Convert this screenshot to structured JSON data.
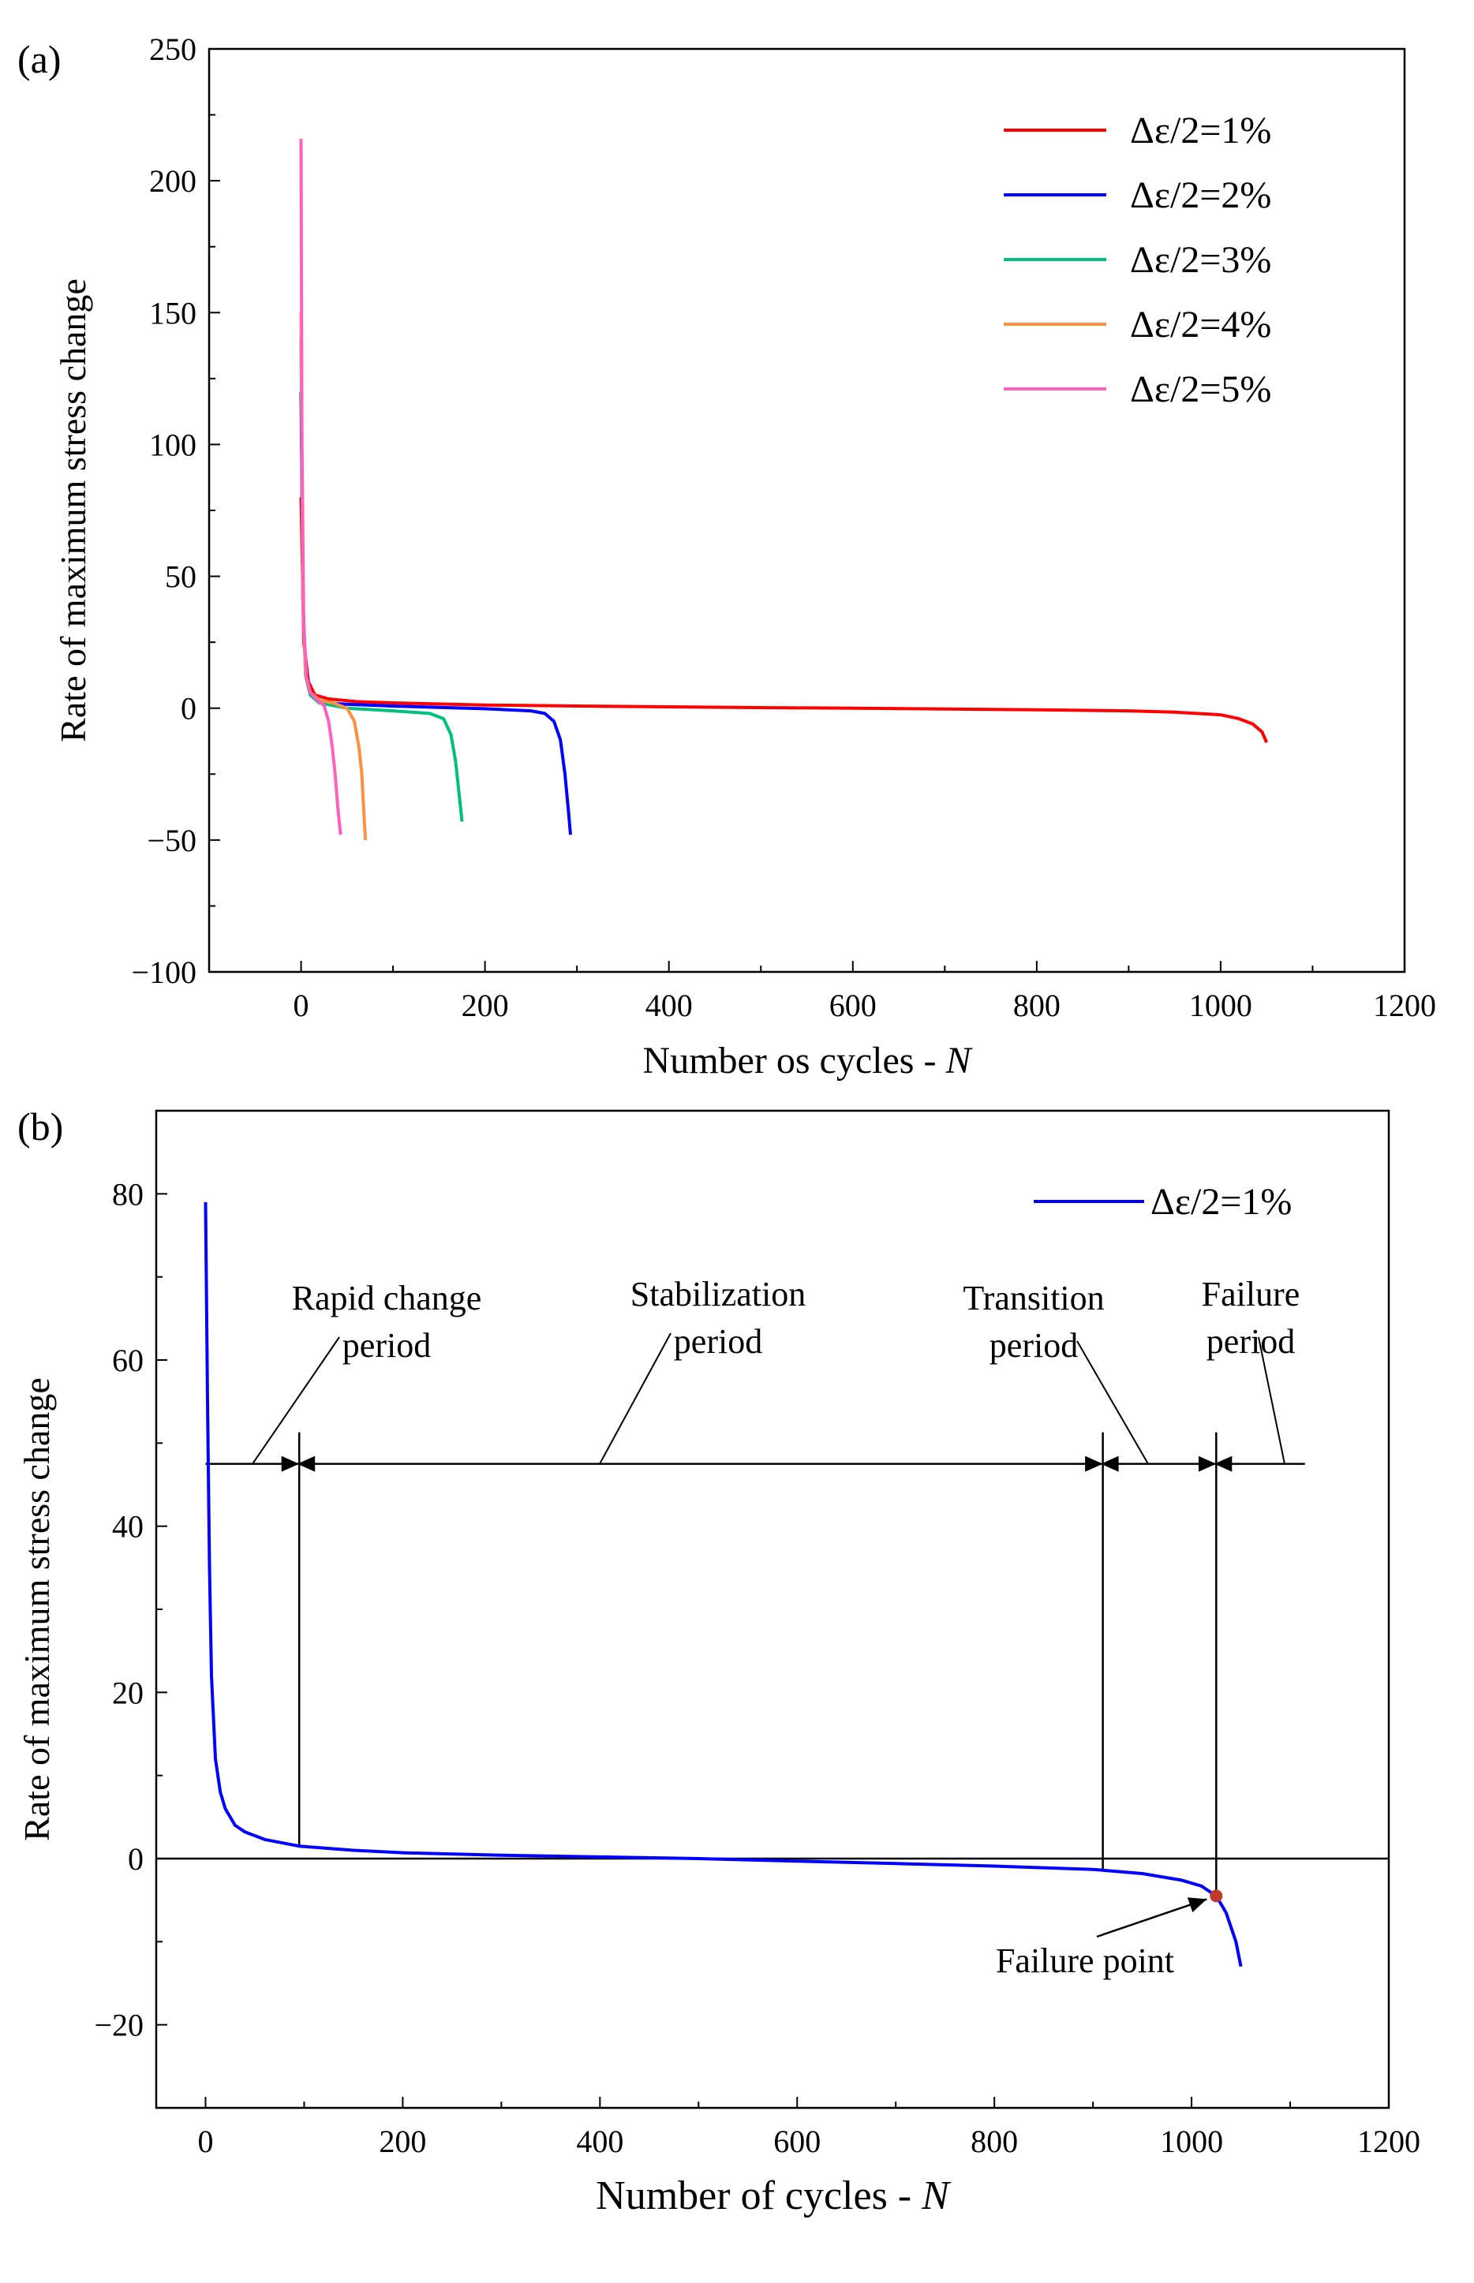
{
  "chart_data": [
    {
      "panel_label": "(a)",
      "type": "line",
      "title": "",
      "xlabel": "Number os cycles - ",
      "xlabel_italic": "N",
      "ylabel": "Rate of maximum stress change",
      "xlim": [
        -100,
        1200
      ],
      "ylim": [
        -100,
        250
      ],
      "xticks": [
        0,
        200,
        400,
        600,
        800,
        1000,
        1200
      ],
      "yticks": [
        -100,
        -50,
        0,
        50,
        100,
        150,
        200,
        250
      ],
      "grid": false,
      "legend_position": "top-right",
      "series": [
        {
          "name": "Δε/2=1%",
          "color": "#ff0000",
          "x": [
            0,
            3,
            8,
            15,
            30,
            60,
            100,
            200,
            300,
            400,
            500,
            600,
            700,
            800,
            900,
            950,
            1000,
            1020,
            1035,
            1045,
            1050
          ],
          "y": [
            80,
            25,
            10,
            5,
            3.5,
            2.5,
            2,
            1.2,
            0.8,
            0.5,
            0.2,
            0,
            -0.3,
            -0.6,
            -1,
            -1.5,
            -2.5,
            -4,
            -6,
            -9,
            -13
          ]
        },
        {
          "name": "Δε/2=2%",
          "color": "#0000ff",
          "x": [
            0,
            2,
            5,
            10,
            20,
            50,
            100,
            150,
            200,
            250,
            265,
            275,
            282,
            287,
            291,
            293
          ],
          "y": [
            120,
            40,
            15,
            5,
            2,
            1.5,
            0.8,
            0.3,
            -0.2,
            -1,
            -2,
            -5,
            -12,
            -25,
            -40,
            -48
          ]
        },
        {
          "name": "Δε/2=3%",
          "color": "#00c080",
          "x": [
            0,
            2,
            5,
            10,
            20,
            50,
            100,
            140,
            155,
            163,
            168,
            172,
            175
          ],
          "y": [
            140,
            40,
            12,
            5,
            2,
            0,
            -1,
            -2,
            -4,
            -10,
            -20,
            -33,
            -43
          ]
        },
        {
          "name": "Δε/2=4%",
          "color": "#ff9040",
          "x": [
            0,
            2,
            5,
            10,
            20,
            35,
            50,
            58,
            63,
            66,
            68,
            70
          ],
          "y": [
            150,
            40,
            12,
            6,
            3,
            2,
            0,
            -5,
            -15,
            -25,
            -38,
            -50
          ]
        },
        {
          "name": "Δε/2=5%",
          "color": "#ff60c0",
          "x": [
            0,
            1,
            3,
            6,
            10,
            18,
            25,
            30,
            34,
            37,
            40,
            43
          ],
          "y": [
            216,
            100,
            30,
            12,
            6,
            3,
            1,
            -5,
            -15,
            -25,
            -38,
            -48
          ]
        }
      ]
    },
    {
      "panel_label": "(b)",
      "type": "line",
      "title": "",
      "xlabel": "Number of cycles - ",
      "xlabel_italic": "N",
      "ylabel": "Rate of maximum stress change",
      "xlim": [
        -50,
        1200
      ],
      "ylim": [
        -30,
        90
      ],
      "xticks": [
        0,
        200,
        400,
        600,
        800,
        1000,
        1200
      ],
      "yticks": [
        -20,
        0,
        20,
        40,
        60,
        80
      ],
      "grid": false,
      "legend_position": "top-right",
      "series": [
        {
          "name": "Δε/2=1%",
          "color": "#0000ff",
          "x": [
            0,
            2,
            4,
            6,
            10,
            15,
            20,
            30,
            40,
            60,
            95,
            150,
            200,
            300,
            400,
            500,
            600,
            700,
            800,
            900,
            950,
            990,
            1010,
            1025,
            1035,
            1045,
            1050
          ],
          "y": [
            79,
            55,
            35,
            22,
            12,
            8,
            6,
            4,
            3.2,
            2.3,
            1.5,
            1.0,
            0.7,
            0.4,
            0.2,
            0,
            -0.3,
            -0.6,
            -0.9,
            -1.3,
            -1.8,
            -2.6,
            -3.3,
            -4.5,
            -6.5,
            -10,
            -13
          ]
        }
      ],
      "reference_line_y": 0,
      "period_arrow_y": 47.5,
      "period_x_range": [
        0,
        1115
      ],
      "period_boundaries": [
        95,
        910,
        1025
      ],
      "annotations": [
        {
          "label_lines": [
            "Rapid change",
            "period"
          ],
          "anchor_x": 50
        },
        {
          "label_lines": [
            "Stabilization",
            "period"
          ],
          "anchor_x": 400
        },
        {
          "label_lines": [
            "Transition",
            "period"
          ],
          "anchor_x": 960
        },
        {
          "label_lines": [
            "Failure",
            "period"
          ],
          "anchor_x": 1090
        }
      ],
      "failure_point": {
        "label": "Failure point",
        "x": 1025,
        "y": -4.5,
        "color": "#c0392b"
      }
    }
  ]
}
